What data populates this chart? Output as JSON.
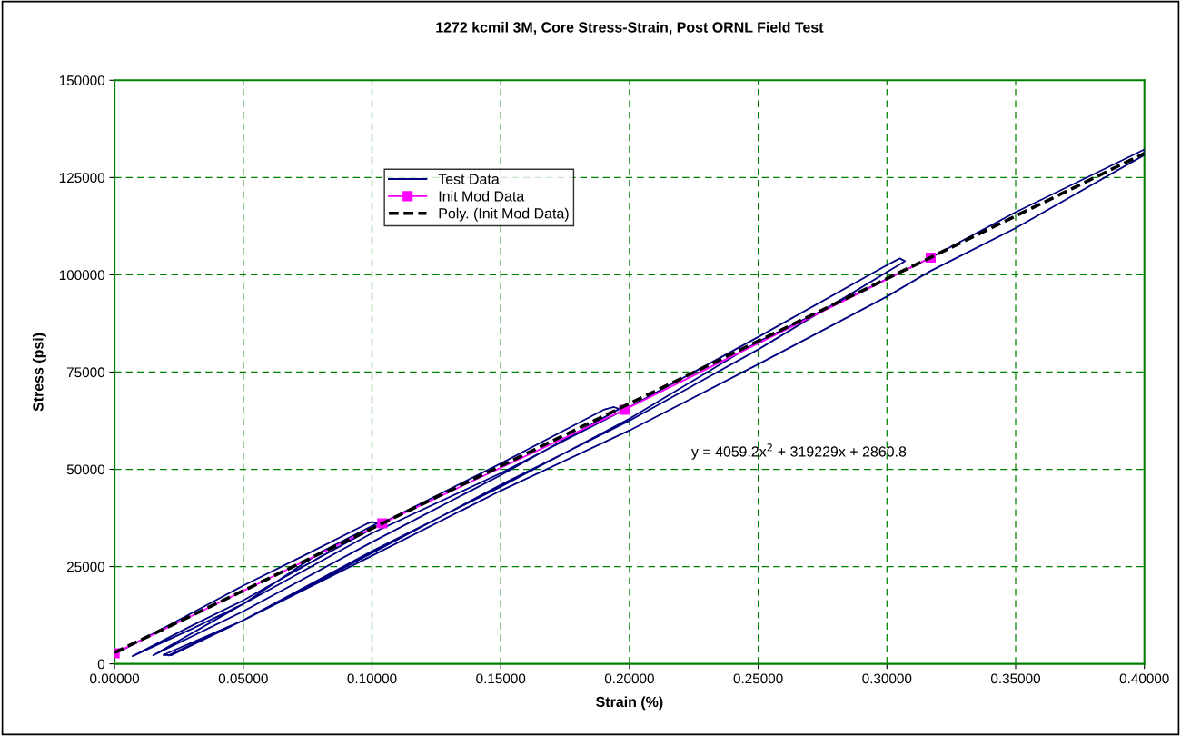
{
  "chart_data": {
    "type": "line",
    "title": "1272 kcmil 3M, Core Stress-Strain, Post ORNL Field Test",
    "xlabel": "Strain (%)",
    "ylabel": "Stress (psi)",
    "xlim": [
      0,
      0.4
    ],
    "ylim": [
      0,
      150000
    ],
    "xticks": [
      {
        "value": 0,
        "label": "0.00000"
      },
      {
        "value": 0.05,
        "label": "0.05000"
      },
      {
        "value": 0.1,
        "label": "0.10000"
      },
      {
        "value": 0.15,
        "label": "0.15000"
      },
      {
        "value": 0.2,
        "label": "0.20000"
      },
      {
        "value": 0.25,
        "label": "0.25000"
      },
      {
        "value": 0.3,
        "label": "0.30000"
      },
      {
        "value": 0.35,
        "label": "0.35000"
      },
      {
        "value": 0.4,
        "label": "0.40000"
      }
    ],
    "yticks": [
      0,
      25000,
      50000,
      75000,
      100000,
      125000,
      150000
    ],
    "grid": true,
    "legend": "top left",
    "marker": "none",
    "line_style": "solid",
    "annotations": [
      "y = 4059.2x$^{2}$ + 319229x + 2860.8"
    ],
    "series": [
      {
        "name": "Test Data",
        "color": "#000080",
        "x": [
          0,
          0.025,
          0.05,
          0.075,
          0.098,
          0.1,
          0.102,
          0.08,
          0.05,
          0.03,
          0.007,
          0.03,
          0.05,
          0.08,
          0.104,
          0.15,
          0.19,
          0.194,
          0.196,
          0.15,
          0.1,
          0.05,
          0.015,
          0.05,
          0.1,
          0.15,
          0.198,
          0.25,
          0.3,
          0.305,
          0.307,
          0.25,
          0.2,
          0.15,
          0.1,
          0.05,
          0.019,
          0.022,
          0.05,
          0.1,
          0.15,
          0.2,
          0.25,
          0.317,
          0.35,
          0.4,
          0.4,
          0.35,
          0.317,
          0.3,
          0.25,
          0.2,
          0.15,
          0.1,
          0.05,
          0.021
        ],
        "values": [
          2500,
          11300,
          20100,
          28300,
          36000,
          36500,
          36100,
          28700,
          15400,
          9000,
          2000,
          9800,
          16300,
          27500,
          36200,
          51500,
          65300,
          66000,
          65500,
          48500,
          31300,
          13500,
          2200,
          15400,
          33600,
          49000,
          65300,
          84000,
          102500,
          104200,
          103500,
          80800,
          62500,
          46000,
          28500,
          11200,
          2300,
          2200,
          11200,
          29000,
          45500,
          63000,
          82800,
          104400,
          116100,
          132200,
          130800,
          112000,
          101000,
          94400,
          77000,
          60000,
          44500,
          27800,
          11200,
          2200
        ]
      },
      {
        "name": "Init Mod Data",
        "color": "#ff00ff",
        "marker": "square",
        "x": [
          0,
          0.104,
          0.198,
          0.317
        ],
        "values": [
          2700,
          36100,
          65300,
          104400
        ]
      },
      {
        "name": "Poly. (Init Mod Data)",
        "color": "#000000",
        "line_style": "dashed",
        "x": [
          0,
          0.05,
          0.1,
          0.2,
          0.3,
          0.4
        ],
        "values": [
          2900,
          18800,
          34800,
          66900,
          99000,
          131200
        ]
      }
    ]
  }
}
